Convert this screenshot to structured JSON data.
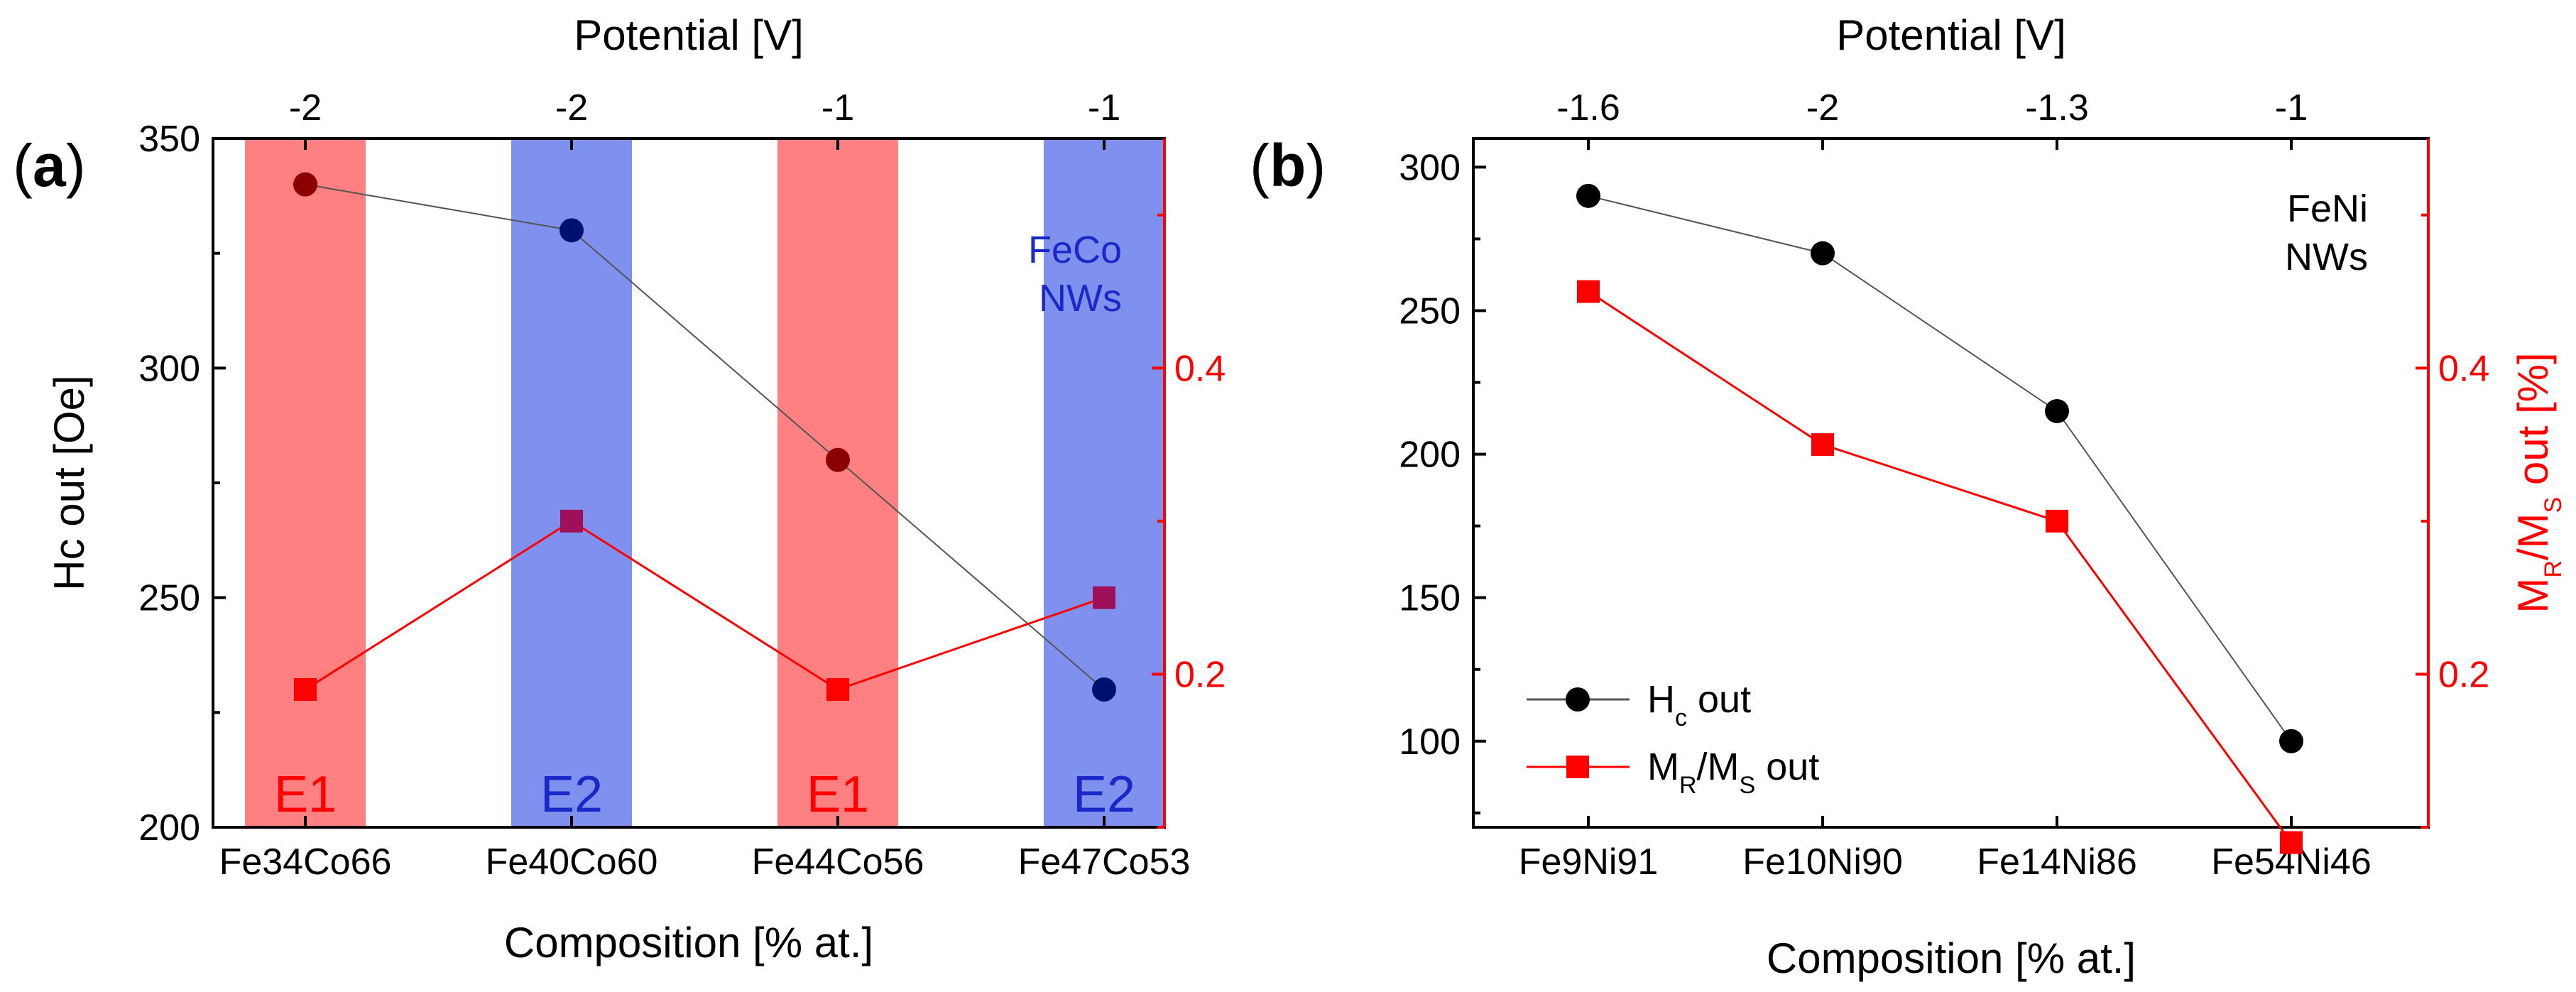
{
  "chart_data": [
    {
      "panel_label": "(a)",
      "type": "line",
      "categories": [
        "Fe34Co66",
        "Fe40Co60",
        "Fe44Co56",
        "Fe47Co53"
      ],
      "xlabel": "Composition [% at.]",
      "top_axis": {
        "label": "Potential [V]",
        "tick_labels": [
          "-2",
          "-2",
          "-1",
          "-1"
        ]
      },
      "ylabel": "Hc out [Oe]",
      "ylim": [
        200,
        350
      ],
      "yticks": [
        200,
        250,
        300,
        350
      ],
      "y2lim": [
        0.1,
        0.55
      ],
      "y2ticks": [
        0.2,
        0.4
      ],
      "annotation": [
        "FeCo",
        "NWs"
      ],
      "bands": [
        {
          "label": "E1",
          "color": "#ff8080",
          "label_color": "#ff0000"
        },
        {
          "label": "E2",
          "color": "#8090ee",
          "label_color": "#1a28c8"
        },
        {
          "label": "E1",
          "color": "#ff8080",
          "label_color": "#ff0000"
        },
        {
          "label": "E2",
          "color": "#8090ee",
          "label_color": "#1a28c8"
        }
      ],
      "series": [
        {
          "axis": "left",
          "marker": "circle",
          "values": [
            340,
            330,
            280,
            230
          ],
          "marker_colors": [
            "#8b0000",
            "#00106e",
            "#8b0000",
            "#00106e"
          ],
          "line_color": "#555555"
        },
        {
          "axis": "right",
          "marker": "square",
          "values": [
            0.19,
            0.3,
            0.19,
            0.25
          ],
          "marker_colors": [
            "#ff0000",
            "#a0105a",
            "#ff0000",
            "#a0105a"
          ],
          "line_color": "#ff0000"
        }
      ]
    },
    {
      "panel_label": "(b)",
      "type": "line",
      "categories": [
        "Fe9Ni91",
        "Fe10Ni90",
        "Fe14Ni86",
        "Fe54Ni46"
      ],
      "xlabel": "Composition [% at.]",
      "top_axis": {
        "label": "Potential [V]",
        "tick_labels": [
          "-1.6",
          "-2",
          "-1.3",
          "-1"
        ]
      },
      "ylabel": "",
      "ylim": [
        70,
        310
      ],
      "yticks": [
        100,
        150,
        200,
        250,
        300
      ],
      "y2label_parts": [
        "M",
        "R",
        "/M",
        "S",
        " out [%]"
      ],
      "y2lim": [
        0.1,
        0.55
      ],
      "y2ticks": [
        0.2,
        0.4
      ],
      "annotation": [
        "FeNi",
        "NWs"
      ],
      "legend": {
        "position": "lower-left",
        "entries": [
          {
            "parts": [
              "H",
              "c",
              " out"
            ]
          },
          {
            "parts": [
              "M",
              "R",
              "/M",
              "S",
              " out"
            ]
          }
        ]
      },
      "series": [
        {
          "axis": "left",
          "marker": "circle",
          "values": [
            290,
            270,
            215,
            100
          ],
          "marker_colors": [
            "#000000",
            "#000000",
            "#000000",
            "#000000"
          ],
          "line_color": "#555555"
        },
        {
          "axis": "right",
          "marker": "square",
          "values": [
            0.45,
            0.35,
            0.3,
            0.09
          ],
          "marker_colors": [
            "#ff0000",
            "#ff0000",
            "#ff0000",
            "#ff0000"
          ],
          "line_color": "#ff0000"
        }
      ]
    }
  ]
}
